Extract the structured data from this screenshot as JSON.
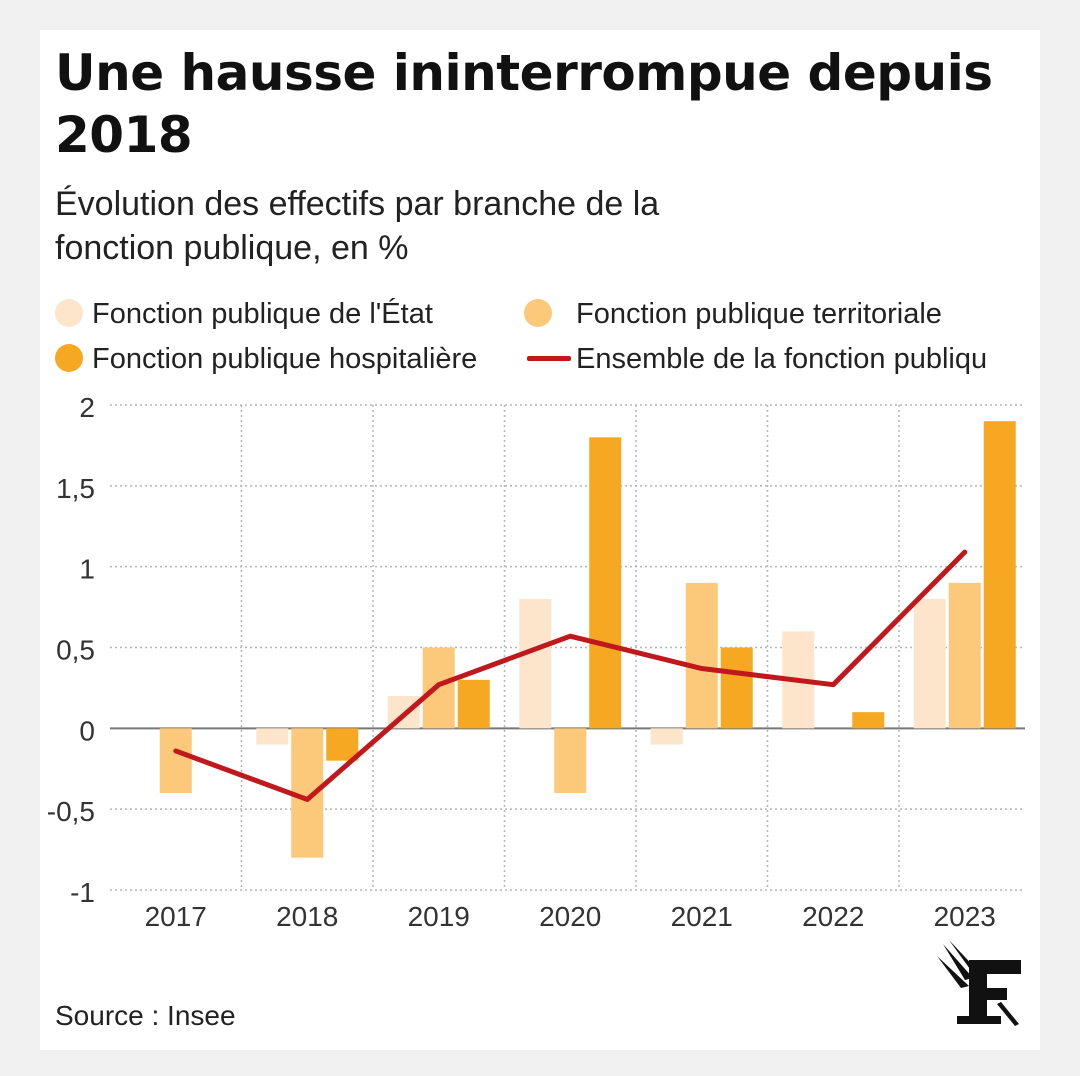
{
  "header": {
    "title": "Une hausse ininterrompue depuis 2018",
    "subtitle": "Évolution des effectifs par branche de la fonction publique, en %"
  },
  "footer": {
    "source": "Source : Insee"
  },
  "logo": {
    "icon": "le-figaro-logo-icon",
    "text": "F"
  },
  "colors": {
    "etat": "#fde5cc",
    "territoriale": "#fcc87a",
    "hospitaliere": "#f7a823",
    "ensemble": "#c0181c",
    "grid": "#b5b5b5",
    "zero_line": "#777777"
  },
  "chart_data": {
    "type": "bar",
    "title": "Une hausse ininterrompue depuis 2018",
    "subtitle": "Évolution des effectifs par branche de la fonction publique, en %",
    "categories": [
      "2017",
      "2018",
      "2019",
      "2020",
      "2021",
      "2022",
      "2023"
    ],
    "series": [
      {
        "name": "Fonction publique de l'État",
        "type": "bar",
        "color": "#fde5cc",
        "values": [
          null,
          -0.1,
          0.2,
          0.8,
          -0.1,
          0.6,
          0.8
        ]
      },
      {
        "name": "Fonction publique territoriale",
        "type": "bar",
        "color": "#fcc87a",
        "values": [
          -0.4,
          -0.8,
          0.5,
          -0.4,
          0.9,
          null,
          0.9
        ]
      },
      {
        "name": "Fonction publique hospitalière",
        "type": "bar",
        "color": "#f7a823",
        "values": [
          null,
          -0.2,
          0.3,
          1.8,
          0.5,
          0.1,
          1.9
        ]
      },
      {
        "name": "Ensemble de la fonction publiqu",
        "type": "line",
        "color": "#c0181c",
        "values": [
          -0.14,
          -0.44,
          0.27,
          0.57,
          0.37,
          0.27,
          1.09
        ]
      }
    ],
    "yticks": [
      "2",
      "1,5",
      "1",
      "0,5",
      "0",
      "-0,5",
      "-1"
    ],
    "ytick_values": [
      2,
      1.5,
      1,
      0.5,
      0,
      -0.5,
      -1
    ],
    "ylim": [
      -1,
      2
    ],
    "xlabel": "",
    "ylabel": "",
    "grid": "dotted",
    "legend": "top"
  }
}
